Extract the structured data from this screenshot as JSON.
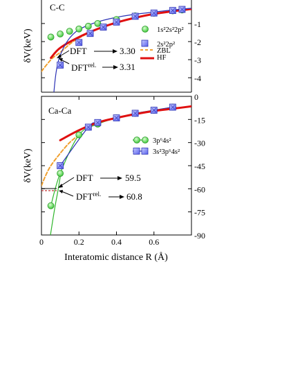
{
  "figure": {
    "xlabel": "Interatomic distance R (Å)",
    "ylabel_top": "δV(keV)",
    "ylabel_bottom": "δV(keV)"
  },
  "chart_data": [
    {
      "type": "line",
      "panel": "C-C",
      "title": "C-C",
      "ylabel": "δV(keV)",
      "xlim": [
        0,
        0.8
      ],
      "ylim": [
        -4.8,
        0.3
      ],
      "y_ticks": [
        -1,
        -2,
        -3,
        -4
      ],
      "y_tick_labels": [
        "-1",
        "-2",
        "-3",
        "-4"
      ],
      "y_axis_side": "right",
      "grid": false,
      "legend_position": "top-right",
      "series": [
        {
          "name": "1s²2s²2p²",
          "style": "green-circles",
          "x": [
            0.05,
            0.1,
            0.15,
            0.2,
            0.25,
            0.3,
            0.4,
            0.5,
            0.6,
            0.7,
            0.75
          ],
          "y": [
            -1.75,
            -1.58,
            -1.43,
            -1.3,
            -1.15,
            -1.0,
            -0.78,
            -0.58,
            -0.43,
            -0.3,
            -0.25
          ]
        },
        {
          "name": "2s²2p²",
          "style": "blue-squares",
          "x": [
            0.1,
            0.2,
            0.26,
            0.33,
            0.4,
            0.5,
            0.6,
            0.7,
            0.75
          ],
          "y": [
            -3.3,
            -2.05,
            -1.55,
            -1.2,
            -0.92,
            -0.6,
            -0.42,
            -0.28,
            -0.22
          ]
        },
        {
          "name": "ZBL",
          "style": "orange-dashed",
          "x": [
            0.0,
            0.03,
            0.06,
            0.1,
            0.15,
            0.2,
            0.3,
            0.4
          ],
          "y": [
            -3.65,
            -3.25,
            -2.9,
            -2.6,
            -2.15,
            -1.8,
            -1.3,
            -0.95
          ]
        },
        {
          "name": "HF",
          "style": "red-thick",
          "x": [
            0.05,
            0.1,
            0.2,
            0.3,
            0.4,
            0.5,
            0.6,
            0.7,
            0.8
          ],
          "y": [
            -2.9,
            -2.35,
            -1.75,
            -1.3,
            -0.95,
            -0.68,
            -0.47,
            -0.32,
            -0.2
          ]
        }
      ],
      "annotations": [
        {
          "label": "DFT",
          "arrow_to": "3.30"
        },
        {
          "label": "DFT",
          "superscript": "rel.",
          "arrow_to": "3.31"
        }
      ]
    },
    {
      "type": "line",
      "panel": "Ca-Ca",
      "title": "Ca-Ca",
      "ylabel": "δV(keV)",
      "xlim": [
        0,
        0.8
      ],
      "ylim": [
        -90,
        0
      ],
      "x_ticks": [
        0,
        0.2,
        0.4,
        0.6
      ],
      "x_tick_labels": [
        "0",
        "0.2",
        "0.4",
        "0.6"
      ],
      "y_ticks": [
        0,
        -15,
        -30,
        -45,
        -60,
        -75,
        -90
      ],
      "y_tick_labels": [
        "0",
        "-15",
        "-30",
        "-45",
        "-60",
        "-75",
        "-90"
      ],
      "y_axis_side": "right",
      "xlabel": "Interatomic distance R (Å)",
      "grid": false,
      "legend_position": "right",
      "series": [
        {
          "name": "3p⁶4s²",
          "style": "green-circles-line",
          "x": [
            0.05,
            0.1,
            0.2,
            0.3,
            0.4,
            0.5,
            0.6,
            0.7
          ],
          "y": [
            -71,
            -50,
            -25,
            -18,
            -14,
            -11,
            -9,
            -7
          ]
        },
        {
          "name": "3s²3p⁶4s²",
          "style": "blue-squares-line",
          "x": [
            0.1,
            0.25,
            0.3,
            0.4,
            0.5,
            0.6,
            0.7
          ],
          "y": [
            -45,
            -20,
            -17,
            -14,
            -11,
            -9,
            -7
          ]
        },
        {
          "name": "ZBL",
          "style": "orange-dashed",
          "x": [
            0.0,
            0.02,
            0.05,
            0.1,
            0.15,
            0.2
          ],
          "y": [
            -58,
            -52,
            -45,
            -37,
            -30,
            -25
          ]
        },
        {
          "name": "HF",
          "style": "red-thick",
          "x": [
            0.1,
            0.2,
            0.3,
            0.4,
            0.5,
            0.6,
            0.7,
            0.8
          ],
          "y": [
            -28.5,
            -22,
            -17,
            -14,
            -11.5,
            -9.5,
            -8,
            -6.5
          ]
        }
      ],
      "annotations": [
        {
          "label": "DFT",
          "arrow_to": "59.5"
        },
        {
          "label": "DFT",
          "superscript": "rel.",
          "arrow_to": "60.8"
        }
      ]
    }
  ]
}
